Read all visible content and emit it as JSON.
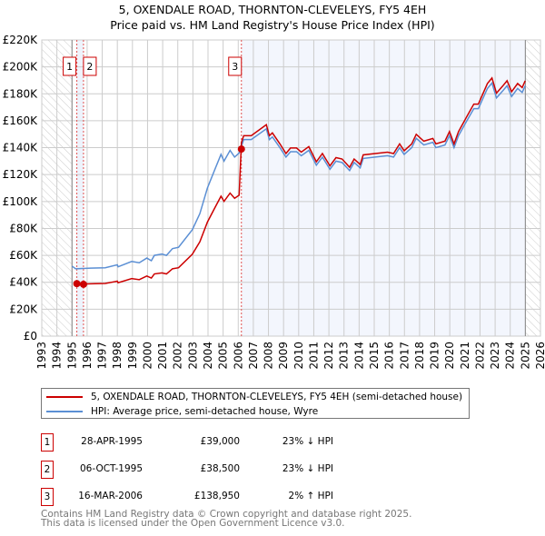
{
  "chart_data": {
    "type": "line",
    "title": "5, OXENDALE ROAD, THORNTON-CLEVELEYS, FY5 4EH",
    "subtitle": "Price paid vs. HM Land Registry's House Price Index (HPI)",
    "xlim": [
      1993,
      2026
    ],
    "ylim": [
      0,
      220000
    ],
    "x_ticks": [
      "1993",
      "1994",
      "1995",
      "1996",
      "1997",
      "1998",
      "1999",
      "2000",
      "2001",
      "2002",
      "2003",
      "2004",
      "2005",
      "2006",
      "2007",
      "2008",
      "2009",
      "2010",
      "2011",
      "2012",
      "2013",
      "2014",
      "2015",
      "2016",
      "2017",
      "2018",
      "2019",
      "2020",
      "2021",
      "2022",
      "2023",
      "2024",
      "2025",
      "2026"
    ],
    "y_ticks": [
      {
        "v": 0,
        "label": "£0"
      },
      {
        "v": 20000,
        "label": "£20K"
      },
      {
        "v": 40000,
        "label": "£40K"
      },
      {
        "v": 60000,
        "label": "£60K"
      },
      {
        "v": 80000,
        "label": "£80K"
      },
      {
        "v": 100000,
        "label": "£100K"
      },
      {
        "v": 120000,
        "label": "£120K"
      },
      {
        "v": 140000,
        "label": "£140K"
      },
      {
        "v": 160000,
        "label": "£160K"
      },
      {
        "v": 180000,
        "label": "£180K"
      },
      {
        "v": 200000,
        "label": "£200K"
      },
      {
        "v": 220000,
        "label": "£220K"
      }
    ],
    "grid": true,
    "data_range": [
      1995.0,
      2025.0
    ],
    "series": [
      {
        "name": "5, OXENDALE ROAD, THORNTON-CLEVELEYS, FY5 4EH (semi-detached house)",
        "color": "#cc0000",
        "hpi_ratio_segments": [
          {
            "from": 1995.32,
            "to": 2006.21,
            "ratio": 0.77
          },
          {
            "from": 2006.21,
            "to": 2025.0,
            "ratio": 1.02
          }
        ]
      },
      {
        "name": "HPI: Average price, semi-detached house, Wyre",
        "color": "#5b8fd4",
        "points": [
          [
            1995.0,
            52000
          ],
          [
            1995.24,
            50000
          ],
          [
            1996.25,
            50500
          ],
          [
            1997.2,
            50800
          ],
          [
            1998.0,
            53000
          ],
          [
            1998.05,
            51500
          ],
          [
            1998.95,
            55500
          ],
          [
            1999.45,
            54500
          ],
          [
            1999.95,
            58000
          ],
          [
            2000.25,
            56000
          ],
          [
            2000.45,
            60000
          ],
          [
            2000.95,
            61000
          ],
          [
            2001.25,
            60000
          ],
          [
            2001.65,
            65000
          ],
          [
            2002.05,
            66000
          ],
          [
            2002.96,
            79000
          ],
          [
            2003.46,
            91000
          ],
          [
            2003.96,
            110000
          ],
          [
            2004.46,
            124000
          ],
          [
            2004.86,
            135000
          ],
          [
            2005.06,
            130000
          ],
          [
            2005.46,
            138000
          ],
          [
            2005.76,
            133000
          ],
          [
            2006.06,
            136000
          ],
          [
            2006.36,
            146000
          ],
          [
            2006.86,
            146000
          ],
          [
            2007.86,
            154000
          ],
          [
            2008.06,
            146000
          ],
          [
            2008.26,
            148000
          ],
          [
            2008.76,
            140000
          ],
          [
            2009.16,
            133000
          ],
          [
            2009.46,
            137000
          ],
          [
            2009.86,
            137000
          ],
          [
            2010.17,
            134000
          ],
          [
            2010.67,
            138000
          ],
          [
            2011.17,
            127000
          ],
          [
            2011.57,
            133000
          ],
          [
            2012.07,
            124000
          ],
          [
            2012.47,
            130000
          ],
          [
            2012.87,
            129000
          ],
          [
            2013.37,
            123000
          ],
          [
            2013.67,
            129000
          ],
          [
            2014.07,
            125000
          ],
          [
            2014.27,
            132000
          ],
          [
            2015.07,
            133000
          ],
          [
            2015.88,
            134000
          ],
          [
            2016.28,
            133000
          ],
          [
            2016.68,
            140000
          ],
          [
            2016.98,
            135000
          ],
          [
            2017.48,
            140000
          ],
          [
            2017.78,
            147000
          ],
          [
            2018.28,
            142000
          ],
          [
            2018.88,
            144000
          ],
          [
            2019.08,
            140000
          ],
          [
            2019.68,
            142000
          ],
          [
            2019.98,
            149000
          ],
          [
            2020.28,
            140000
          ],
          [
            2020.58,
            149000
          ],
          [
            2021.08,
            159000
          ],
          [
            2021.59,
            169000
          ],
          [
            2021.89,
            169000
          ],
          [
            2022.49,
            184000
          ],
          [
            2022.79,
            188000
          ],
          [
            2023.09,
            177000
          ],
          [
            2023.49,
            182000
          ],
          [
            2023.79,
            186000
          ],
          [
            2024.09,
            178000
          ],
          [
            2024.49,
            184000
          ],
          [
            2024.79,
            181000
          ],
          [
            2024.99,
            186000
          ]
        ]
      }
    ],
    "sales": [
      {
        "n": "1",
        "x": 1995.32,
        "price": 39000
      },
      {
        "n": "2",
        "x": 1995.76,
        "price": 38500
      },
      {
        "n": "3",
        "x": 2006.21,
        "price": 138950
      }
    ]
  },
  "legend": {
    "property": "5, OXENDALE ROAD, THORNTON-CLEVELEYS, FY5 4EH (semi-detached house)",
    "hpi": "HPI: Average price, semi-detached house, Wyre"
  },
  "table": [
    {
      "n": "1",
      "date": "28-APR-1995",
      "price": "£39,000",
      "hpi": "23% ↓ HPI"
    },
    {
      "n": "2",
      "date": "06-OCT-1995",
      "price": "£38,500",
      "hpi": "23% ↓ HPI"
    },
    {
      "n": "3",
      "date": "16-MAR-2006",
      "price": "£138,950",
      "hpi": "2% ↑ HPI"
    }
  ],
  "footer": {
    "line1": "Contains HM Land Registry data © Crown copyright and database right 2025.",
    "line2": "This data is licensed under the Open Government Licence v3.0."
  }
}
